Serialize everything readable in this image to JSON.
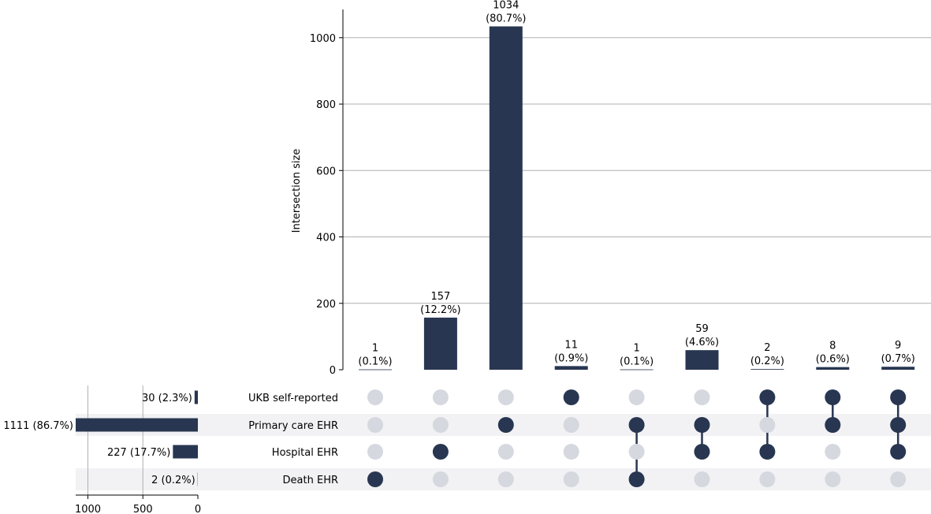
{
  "chart_data": {
    "type": "bar",
    "intersection_counts": [
      "1",
      "157",
      "1034",
      "11",
      "1",
      "59",
      "2",
      "8",
      "9"
    ],
    "intersection_values": [
      1,
      157,
      1034,
      11,
      1,
      59,
      2,
      8,
      9
    ],
    "intersection_percents": [
      "(0.1%)",
      "(12.2%)",
      "(80.7%)",
      "(0.9%)",
      "(0.1%)",
      "(4.6%)",
      "(0.2%)",
      "(0.6%)",
      "(0.7%)"
    ],
    "ylabel": "Intersection size",
    "ylim": [
      0,
      1085
    ],
    "yticks": [
      "0",
      "200",
      "400",
      "600",
      "800",
      "1000"
    ],
    "ytick_values": [
      0,
      200,
      400,
      600,
      800,
      1000
    ],
    "grid": true,
    "sets": [
      "UKB self-reported",
      "Primary care EHR",
      "Hospital EHR",
      "Death EHR"
    ],
    "set_size_values": [
      30,
      1111,
      227,
      2
    ],
    "set_size_labels": [
      "30 (2.3%)",
      "1111 (86.7%)",
      "227 (17.7%)",
      "2 (0.2%)"
    ],
    "set_size_ticks": [
      "1000",
      "500",
      "0"
    ],
    "set_size_tick_values": [
      1000,
      500,
      0
    ],
    "set_size_xlim": [
      0,
      1111
    ],
    "membership": [
      [
        0,
        0,
        0,
        1
      ],
      [
        0,
        0,
        1,
        0
      ],
      [
        0,
        1,
        0,
        0
      ],
      [
        1,
        0,
        0,
        0
      ],
      [
        0,
        1,
        0,
        1
      ],
      [
        0,
        1,
        1,
        0
      ],
      [
        1,
        0,
        1,
        0
      ],
      [
        1,
        1,
        0,
        0
      ],
      [
        1,
        1,
        1,
        0
      ]
    ],
    "colors": {
      "bar": "#283651",
      "dot_active": "#283651",
      "dot_inactive": "#d5d8de",
      "band": "#f2f2f4",
      "grid": "#b0b0b0"
    }
  }
}
